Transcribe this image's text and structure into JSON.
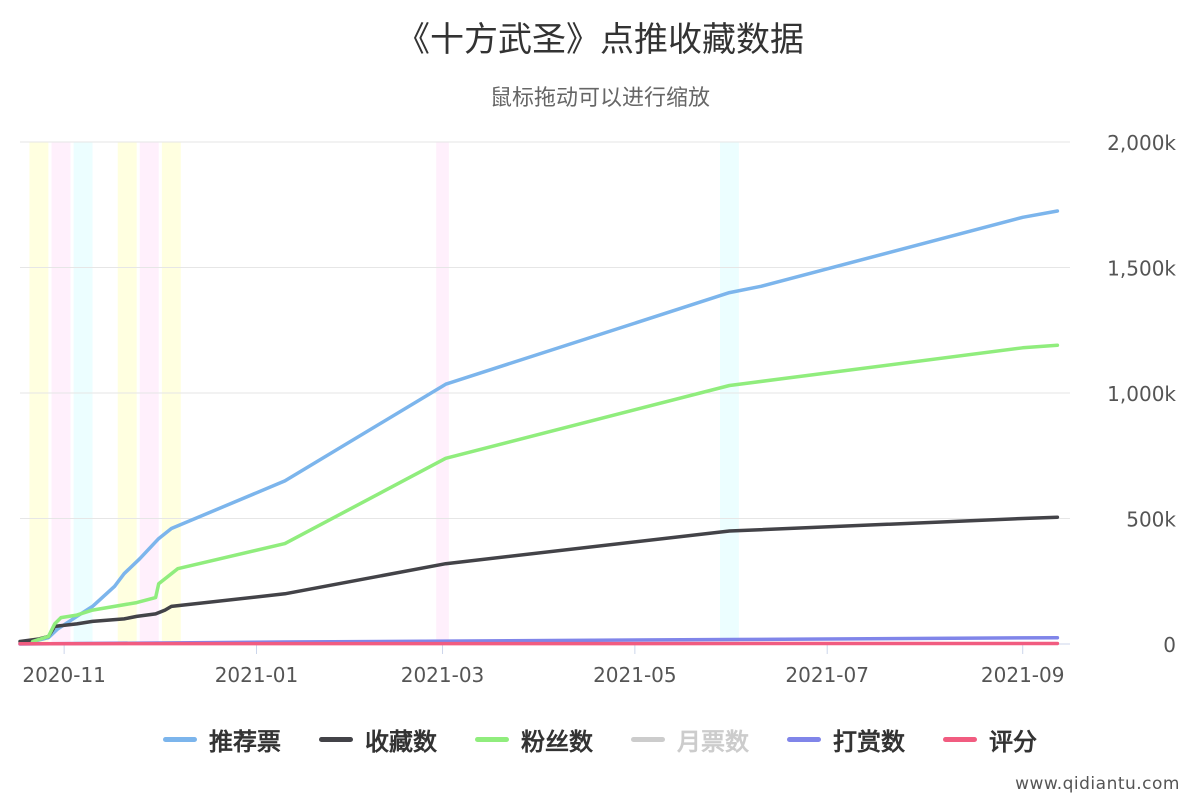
{
  "chart_data": {
    "type": "line",
    "title": "《十方武圣》点推收藏数据",
    "subtitle": "鼠标拖动可以进行缩放",
    "x_tick_labels": [
      "2020-11",
      "2021-01",
      "2021-03",
      "2021-05",
      "2021-07",
      "2021-09"
    ],
    "x_tick_dates": [
      "2020-11-01",
      "2021-01-01",
      "2021-03-01",
      "2021-05-01",
      "2021-07-01",
      "2021-09-01"
    ],
    "x_range": [
      "2020-10-18",
      "2021-09-16"
    ],
    "y_axis": {
      "position": "right",
      "min": 0,
      "max": 2000000,
      "tick_values": [
        0,
        500000,
        1000000,
        1500000,
        2000000
      ],
      "tick_labels": [
        "0",
        "500k",
        "1,000k",
        "1,500k",
        "2,000k"
      ]
    },
    "grid": true,
    "legend_position": "bottom",
    "bands": [
      {
        "from": "2020-10-21",
        "to": "2020-10-27",
        "color": "#ffffe0"
      },
      {
        "from": "2020-10-28",
        "to": "2020-11-03",
        "color": "#fff0fc"
      },
      {
        "from": "2020-11-04",
        "to": "2020-11-10",
        "color": "#ecfeff"
      },
      {
        "from": "2020-11-18",
        "to": "2020-11-24",
        "color": "#ffffe0"
      },
      {
        "from": "2020-11-25",
        "to": "2020-12-01",
        "color": "#fff0fc"
      },
      {
        "from": "2020-12-02",
        "to": "2020-12-08",
        "color": "#ffffe0"
      },
      {
        "from": "2021-02-27",
        "to": "2021-03-03",
        "color": "#fff0fc"
      },
      {
        "from": "2021-05-28",
        "to": "2021-06-03",
        "color": "#ecfeff"
      }
    ],
    "series": [
      {
        "name": "推荐票",
        "color": "#7cb5ec",
        "visible": true,
        "points": [
          [
            "2020-10-22",
            10000
          ],
          [
            "2020-10-27",
            25000
          ],
          [
            "2020-10-30",
            60000
          ],
          [
            "2020-11-05",
            110000
          ],
          [
            "2020-11-10",
            150000
          ],
          [
            "2020-11-17",
            230000
          ],
          [
            "2020-11-20",
            280000
          ],
          [
            "2020-11-25",
            340000
          ],
          [
            "2020-12-01",
            420000
          ],
          [
            "2020-12-05",
            460000
          ],
          [
            "2021-01-10",
            650000
          ],
          [
            "2021-03-02",
            1035000
          ],
          [
            "2021-05-31",
            1400000
          ],
          [
            "2021-06-10",
            1425000
          ],
          [
            "2021-09-01",
            1700000
          ],
          [
            "2021-09-12",
            1725000
          ]
        ]
      },
      {
        "name": "收藏数",
        "color": "#434348",
        "visible": true,
        "points": [
          [
            "2020-10-18",
            10000
          ],
          [
            "2020-10-24",
            20000
          ],
          [
            "2020-10-27",
            30000
          ],
          [
            "2020-10-29",
            70000
          ],
          [
            "2020-11-05",
            80000
          ],
          [
            "2020-11-10",
            90000
          ],
          [
            "2020-11-20",
            100000
          ],
          [
            "2020-11-24",
            110000
          ],
          [
            "2020-11-30",
            120000
          ],
          [
            "2020-12-03",
            135000
          ],
          [
            "2020-12-05",
            150000
          ],
          [
            "2021-01-10",
            200000
          ],
          [
            "2021-03-02",
            320000
          ],
          [
            "2021-05-31",
            450000
          ],
          [
            "2021-09-01",
            500000
          ],
          [
            "2021-09-12",
            505000
          ]
        ]
      },
      {
        "name": "粉丝数",
        "color": "#90ed7d",
        "visible": true,
        "points": [
          [
            "2020-10-22",
            10000
          ],
          [
            "2020-10-27",
            30000
          ],
          [
            "2020-10-29",
            80000
          ],
          [
            "2020-10-31",
            105000
          ],
          [
            "2020-11-05",
            115000
          ],
          [
            "2020-11-10",
            135000
          ],
          [
            "2020-11-24",
            165000
          ],
          [
            "2020-11-30",
            185000
          ],
          [
            "2020-12-01",
            240000
          ],
          [
            "2020-12-04",
            270000
          ],
          [
            "2020-12-07",
            300000
          ],
          [
            "2021-01-10",
            400000
          ],
          [
            "2021-03-02",
            740000
          ],
          [
            "2021-05-31",
            1030000
          ],
          [
            "2021-09-01",
            1180000
          ],
          [
            "2021-09-12",
            1190000
          ]
        ]
      },
      {
        "name": "月票数",
        "color": "#cccccc",
        "visible": false,
        "points": []
      },
      {
        "name": "打赏数",
        "color": "#8085e9",
        "visible": true,
        "points": [
          [
            "2020-10-18",
            0
          ],
          [
            "2021-01-10",
            8000
          ],
          [
            "2021-05-31",
            18000
          ],
          [
            "2021-09-12",
            25000
          ]
        ]
      },
      {
        "name": "评分",
        "color": "#f15c80",
        "visible": true,
        "points": [
          [
            "2020-10-18",
            1000
          ],
          [
            "2021-09-12",
            2000
          ]
        ]
      }
    ]
  },
  "watermark": "www.qidiantu.com"
}
